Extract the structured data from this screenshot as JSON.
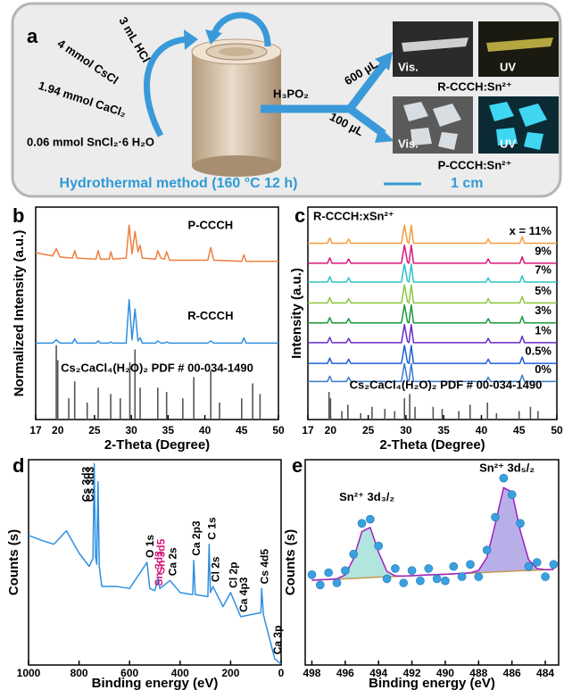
{
  "diagram": {
    "label": "a",
    "reagents": [
      "3 mL HCl",
      "4 mmol CsCl",
      "1.94 mmol CaCl₂",
      "0.06 mmol SnCl₂·6 H₂O"
    ],
    "additive": "H₃PO₂",
    "volumes": [
      "600 µL",
      "100 µL"
    ],
    "photo_labels": [
      "Vis.",
      "UV",
      "Vis.",
      "UV"
    ],
    "products": [
      "R-CCCH:Sn²⁺",
      "P-CCCH:Sn²⁺"
    ],
    "method": "Hydrothermal method (160 °C 12 h)",
    "scale_bar": "1 cm"
  },
  "chart_data": [
    {
      "type": "line",
      "label": "b",
      "xlabel": "2-Theta (Degree)",
      "ylabel": "Normalized Intensity (a.u.)",
      "xlim": [
        17,
        50
      ],
      "xticks": [
        17,
        20,
        25,
        30,
        35,
        40,
        45,
        50
      ],
      "ylim": [
        0,
        10
      ],
      "x": [
        17,
        19.3,
        19.8,
        20.3,
        22,
        22.3,
        22.6,
        25.2,
        25.5,
        25.8,
        27,
        27.2,
        27.5,
        29.3,
        29.7,
        30.1,
        30.5,
        30.9,
        31.2,
        31.5,
        33.3,
        33.6,
        34.0,
        34.5,
        34.8,
        35.2,
        40.4,
        40.8,
        41.2,
        45.0,
        45.3,
        45.6,
        50
      ],
      "series": [
        {
          "name": "P-CCCH",
          "color": "#f07d3e",
          "values": [
            7.85,
            7.7,
            8.05,
            7.65,
            7.6,
            7.95,
            7.6,
            7.55,
            7.95,
            7.55,
            7.55,
            7.9,
            7.55,
            7.6,
            9.15,
            7.8,
            8.85,
            7.9,
            8.2,
            7.6,
            7.55,
            7.95,
            7.6,
            7.55,
            7.9,
            7.5,
            7.5,
            8.1,
            7.5,
            7.45,
            7.75,
            7.45,
            7.45
          ]
        },
        {
          "name": "R-CCCH",
          "color": "#2f8fe0",
          "values": [
            3.6,
            3.6,
            3.75,
            3.6,
            3.6,
            3.8,
            3.6,
            3.6,
            3.7,
            3.6,
            3.6,
            3.65,
            3.6,
            3.6,
            5.65,
            3.75,
            5.2,
            3.7,
            3.85,
            3.6,
            3.6,
            3.7,
            3.6,
            3.6,
            3.65,
            3.6,
            3.6,
            3.7,
            3.6,
            3.6,
            3.85,
            3.6,
            3.6
          ]
        },
        {
          "name": "Cs₂CaCl₄(H₂O)₂ PDF # 00-034-1490",
          "color": "#555555",
          "style": "stick",
          "x": [
            19.8,
            20,
            21.5,
            22.3,
            24,
            25.5,
            27.2,
            28.5,
            29.8,
            30.5,
            31.2,
            33.6,
            34.8,
            37,
            38.5,
            40.8,
            42,
            45,
            46.5,
            47.5
          ],
          "values": [
            3.5,
            2.8,
            1.0,
            1.8,
            0.8,
            1.5,
            1.2,
            1.0,
            2.7,
            3.3,
            1.5,
            1.5,
            1.3,
            1.0,
            2.0,
            2.3,
            0.8,
            1.0,
            1.7,
            1.2
          ]
        }
      ]
    },
    {
      "type": "line",
      "label": "c",
      "xlabel": "2-Theta (Degree)",
      "ylabel": "Intensity (a.u.)",
      "xlim": [
        17,
        50
      ],
      "xticks": [
        17,
        20,
        25,
        30,
        35,
        40,
        45,
        50
      ],
      "ylim": [
        0,
        10
      ],
      "annotations": [
        {
          "text": "R-CCCH:xSn²⁺"
        }
      ],
      "x": [
        17,
        19.6,
        19.9,
        20.2,
        22.1,
        22.4,
        22.7,
        29.4,
        29.8,
        30.2,
        30.4,
        30.7,
        31.0,
        40.6,
        40.9,
        41.2,
        45.1,
        45.4,
        45.7,
        50
      ],
      "series": [
        {
          "name": "x = 11%",
          "color": "#f39c3c",
          "values": [
            8.3,
            8.3,
            8.55,
            8.3,
            8.3,
            8.5,
            8.3,
            8.3,
            9.15,
            8.35,
            8.3,
            9.15,
            8.3,
            8.3,
            8.5,
            8.3,
            8.3,
            8.6,
            8.3,
            8.3
          ]
        },
        {
          "name": "9%",
          "color": "#d6187a",
          "values": [
            7.36,
            7.36,
            7.61,
            7.36,
            7.36,
            7.56,
            7.36,
            7.36,
            8.21,
            7.41,
            7.36,
            8.21,
            7.36,
            7.36,
            7.56,
            7.36,
            7.36,
            7.66,
            7.36,
            7.36
          ]
        },
        {
          "name": "7%",
          "color": "#2ec4c4",
          "values": [
            6.47,
            6.47,
            6.72,
            6.47,
            6.47,
            6.67,
            6.47,
            6.47,
            7.32,
            6.52,
            6.47,
            7.32,
            6.47,
            6.47,
            6.67,
            6.47,
            6.47,
            6.77,
            6.47,
            6.47
          ]
        },
        {
          "name": "5%",
          "color": "#8dc63f",
          "values": [
            5.49,
            5.49,
            5.74,
            5.49,
            5.49,
            5.69,
            5.49,
            5.49,
            6.34,
            5.54,
            5.49,
            6.34,
            5.49,
            5.49,
            5.69,
            5.49,
            5.49,
            5.79,
            5.49,
            5.49
          ]
        },
        {
          "name": "3%",
          "color": "#1a9a3a",
          "values": [
            4.55,
            4.55,
            4.8,
            4.55,
            4.55,
            4.75,
            4.55,
            4.55,
            5.4,
            4.6,
            4.55,
            5.4,
            4.55,
            4.55,
            4.75,
            4.55,
            4.55,
            4.85,
            4.55,
            4.55
          ]
        },
        {
          "name": "1%",
          "color": "#6a2ac8",
          "values": [
            3.62,
            3.62,
            3.87,
            3.62,
            3.62,
            3.82,
            3.62,
            3.62,
            4.47,
            3.67,
            3.62,
            4.47,
            3.62,
            3.62,
            3.82,
            3.62,
            3.62,
            3.92,
            3.62,
            3.62
          ]
        },
        {
          "name": "0.5%",
          "color": "#1f5fd6",
          "values": [
            2.64,
            2.64,
            2.89,
            2.64,
            2.64,
            2.84,
            2.64,
            2.64,
            3.49,
            2.69,
            2.64,
            3.49,
            2.64,
            2.64,
            2.84,
            2.64,
            2.64,
            2.94,
            2.64,
            2.64
          ]
        },
        {
          "name": "0%",
          "color": "#3a7ad0",
          "values": [
            1.79,
            1.79,
            2.04,
            1.79,
            1.79,
            1.99,
            1.79,
            1.79,
            2.64,
            1.84,
            1.79,
            2.64,
            1.79,
            1.79,
            1.99,
            1.79,
            1.79,
            2.09,
            1.79,
            1.79
          ]
        },
        {
          "name": "Cs₂CaCl₄(H₂O)₂ PDF # 00-034-1490",
          "color": "#555555",
          "style": "stick",
          "x": [
            19.8,
            20,
            21.5,
            22.3,
            24,
            25.5,
            27.2,
            28.5,
            29.8,
            30.5,
            31.2,
            33.6,
            34.8,
            37,
            38.5,
            40.8,
            42,
            45,
            46.5,
            47.5
          ],
          "values": [
            1.3,
            1.0,
            0.4,
            0.7,
            0.3,
            0.6,
            0.5,
            0.4,
            1.0,
            1.2,
            0.6,
            0.6,
            0.5,
            0.4,
            0.7,
            0.8,
            0.3,
            0.4,
            0.6,
            0.4
          ]
        }
      ]
    },
    {
      "type": "line",
      "label": "d",
      "xlabel": "Binding energy (eV)",
      "ylabel": "Counts (s)",
      "xlim": [
        1000,
        0
      ],
      "xticks": [
        1000,
        800,
        600,
        400,
        200,
        0
      ],
      "ylim": [
        0,
        10.2
      ],
      "x": [
        1000,
        950,
        900,
        850,
        800,
        760,
        745,
        740,
        735,
        730,
        725,
        720,
        710,
        650,
        600,
        531,
        520,
        500,
        487,
        480,
        440,
        400,
        350,
        346,
        340,
        290,
        285,
        280,
        270,
        230,
        200,
        160,
        80,
        77,
        70,
        60,
        25,
        0
      ],
      "series": [
        {
          "color": "#2f8fe0",
          "values": [
            6.44,
            6.2,
            6.0,
            6.67,
            5.56,
            4.9,
            5.3,
            10,
            5.4,
            5.0,
            9.11,
            4.9,
            3.9,
            3.9,
            3.8,
            5.1,
            3.8,
            3.7,
            4.3,
            3.8,
            4.2,
            3.6,
            3.5,
            5.2,
            3.5,
            3.4,
            6.0,
            3.6,
            3.9,
            2.9,
            3.6,
            2.4,
            2.6,
            3.8,
            2.5,
            2.0,
            0.3,
            0.05
          ]
        }
      ],
      "annotations": [
        {
          "text": "Cs 3d3",
          "x": 740
        },
        {
          "text": "Cs 3d3",
          "x": 725
        },
        {
          "text": "O 1s",
          "x": 531
        },
        {
          "text": "Sn 3d3",
          "x": 495,
          "color": "#d6187a"
        },
        {
          "text": "Sn 3d5",
          "x": 487,
          "color": "#d6187a"
        },
        {
          "text": "Ca 2s",
          "x": 440
        },
        {
          "text": "Ca 2p3",
          "x": 346
        },
        {
          "text": "C 1s",
          "x": 285
        },
        {
          "text": "Cl 2s",
          "x": 270
        },
        {
          "text": "Cl 2p",
          "x": 200
        },
        {
          "text": "Ca 4p3",
          "x": 160
        },
        {
          "text": "Cs 4d5",
          "x": 77
        },
        {
          "text": "Ca 3p",
          "x": 25
        }
      ]
    },
    {
      "type": "scatter",
      "label": "e",
      "xlabel": "Binding energy (eV)",
      "ylabel": "Counts (s)",
      "xlim": [
        498.4,
        483.2
      ],
      "xticks": [
        498,
        496,
        494,
        492,
        490,
        488,
        486,
        484
      ],
      "ylim": [
        0,
        10
      ],
      "x": [
        498,
        497.5,
        497,
        496.5,
        496,
        495.5,
        495,
        494.5,
        494,
        493.5,
        493,
        492.5,
        492,
        491.5,
        491,
        490.5,
        490,
        489.5,
        489,
        488.5,
        488,
        487.5,
        487,
        486.5,
        486,
        485.5,
        485,
        484.5,
        484,
        483.5
      ],
      "series": [
        {
          "color": "#7fd3c8",
          "style": "area",
          "values": [
            4.13,
            4.15,
            4.17,
            4.2,
            4.39,
            5.18,
            6.5,
            6.7,
            5.49,
            4.56,
            4.34,
            4.33,
            4.35,
            4.37,
            4.39,
            4.4,
            4.42,
            4.44,
            4.46,
            4.48,
            4.49,
            4.51,
            4.53,
            4.55,
            4.57,
            4.59,
            4.6,
            4.62,
            4.64,
            4.66
          ]
        },
        {
          "color": "#8a7ad8",
          "style": "area",
          "values": [
            4.13,
            4.15,
            4.17,
            4.18,
            4.2,
            4.22,
            4.24,
            4.26,
            4.28,
            4.29,
            4.31,
            4.33,
            4.35,
            4.37,
            4.39,
            4.4,
            4.42,
            4.44,
            4.46,
            4.49,
            4.61,
            5.24,
            6.88,
            8.64,
            8.42,
            6.54,
            5.13,
            4.7,
            4.64,
            4.66
          ]
        },
        {
          "color": "#c89a50",
          "style": "background",
          "values": [
            4.13,
            4.15,
            4.17,
            4.18,
            4.2,
            4.22,
            4.24,
            4.26,
            4.28,
            4.29,
            4.31,
            4.33,
            4.35,
            4.37,
            4.39,
            4.4,
            4.42,
            4.44,
            4.46,
            4.48,
            4.49,
            4.51,
            4.53,
            4.55,
            4.57,
            4.59,
            4.6,
            4.62,
            4.64,
            4.66
          ]
        },
        {
          "color": "#a020c0",
          "style": "line",
          "values": [
            4.13,
            4.15,
            4.17,
            4.2,
            4.39,
            5.18,
            6.5,
            6.7,
            5.49,
            4.56,
            4.34,
            4.33,
            4.35,
            4.37,
            4.39,
            4.4,
            4.42,
            4.44,
            4.46,
            4.49,
            4.61,
            5.24,
            6.88,
            8.64,
            8.42,
            6.54,
            5.13,
            4.7,
            4.64,
            4.66
          ]
        },
        {
          "color": "#3aa0e0",
          "style": "scatter",
          "values": [
            4.4,
            3.9,
            4.5,
            4.0,
            4.6,
            5.4,
            6.9,
            7.1,
            5.8,
            4.2,
            4.7,
            4.0,
            4.6,
            4.1,
            4.7,
            4.2,
            4.1,
            4.8,
            4.3,
            4.9,
            4.3,
            5.6,
            7.2,
            9.1,
            8.3,
            6.9,
            4.8,
            5.0,
            4.3,
            4.9
          ]
        }
      ],
      "annotations": [
        {
          "text": "Sn²⁺ 3d₃/₂",
          "x": 494.7
        },
        {
          "text": "Sn²⁺ 3d₅/₂",
          "x": 486.3
        }
      ]
    }
  ]
}
